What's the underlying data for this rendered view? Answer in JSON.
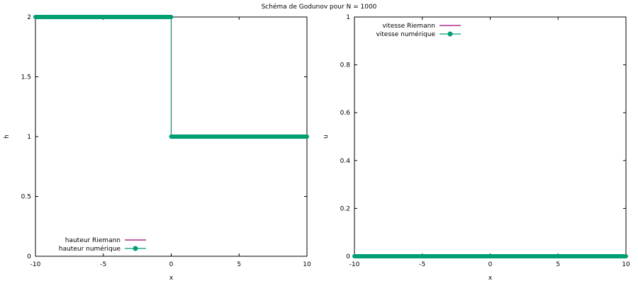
{
  "figure": {
    "title": "Schéma de Godunov pour N = 1000"
  },
  "colors": {
    "riemann": "#a0007a",
    "numeric": "#009e73",
    "axis": "#000000"
  },
  "chart_data": [
    {
      "type": "line",
      "xlabel": "x",
      "ylabel": "h",
      "xlim": [
        -10,
        10
      ],
      "ylim": [
        0,
        2
      ],
      "xticks": [
        -10,
        -5,
        0,
        5,
        10
      ],
      "yticks": [
        0,
        0.5,
        1,
        1.5,
        2
      ],
      "ytick_labels": [
        "0",
        "0.5",
        "1",
        "1.5",
        "2"
      ],
      "legend_position": "bottom-left",
      "grid": false,
      "series": [
        {
          "name": "hauteur Riemann",
          "style": "line",
          "color": "#a0007a",
          "x": [
            -10,
            0,
            0,
            10
          ],
          "y": [
            2,
            2,
            1,
            1
          ]
        },
        {
          "name": "hauteur numérique",
          "style": "line-points",
          "color": "#009e73",
          "x": [
            -10,
            0,
            0,
            10
          ],
          "y": [
            2,
            2,
            1,
            1
          ]
        }
      ]
    },
    {
      "type": "line",
      "xlabel": "x",
      "ylabel": "u",
      "xlim": [
        -10,
        10
      ],
      "ylim": [
        0,
        1
      ],
      "xticks": [
        -10,
        -5,
        0,
        5,
        10
      ],
      "yticks": [
        0,
        0.2,
        0.4,
        0.6,
        0.8,
        1
      ],
      "ytick_labels": [
        "0",
        "0.2",
        "0.4",
        "0.6",
        "0.8",
        "1"
      ],
      "legend_position": "top-left",
      "grid": false,
      "series": [
        {
          "name": "vitesse Riemann",
          "style": "line",
          "color": "#a0007a",
          "x": [
            -10,
            10
          ],
          "y": [
            0,
            0
          ]
        },
        {
          "name": "vitesse numérique",
          "style": "line-points",
          "color": "#009e73",
          "x": [
            -10,
            10
          ],
          "y": [
            0,
            0
          ]
        }
      ]
    }
  ]
}
